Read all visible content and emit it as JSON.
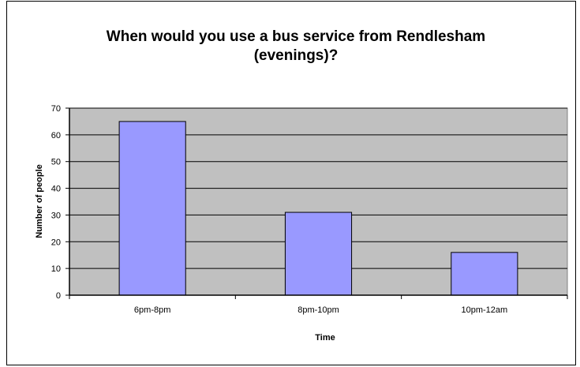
{
  "chart_data": {
    "type": "bar",
    "title_lines": [
      "When would you use a bus service from Rendlesham",
      "(evenings)?"
    ],
    "xlabel": "Time",
    "ylabel": "Number  of people",
    "categories": [
      "6pm-8pm",
      "8pm-10pm",
      "10pm-12am"
    ],
    "values": [
      65,
      31,
      16
    ],
    "ylim": [
      0,
      70
    ],
    "yticks": [
      0,
      10,
      20,
      30,
      40,
      50,
      60,
      70
    ],
    "grid": true,
    "legend": "none",
    "colors": {
      "plot_background": "#c0c0c0",
      "bar_fill": "#9999ff",
      "bar_stroke": "#000000",
      "gridline": "#000000"
    }
  }
}
